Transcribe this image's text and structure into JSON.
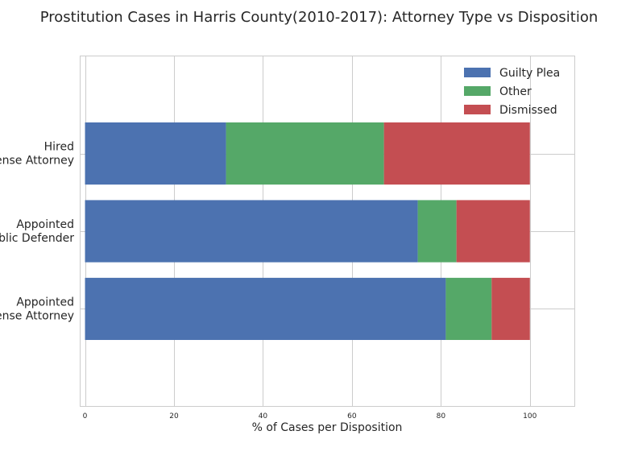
{
  "chart_data": {
    "type": "bar",
    "orientation": "horizontal",
    "stacked": true,
    "title": "Prostitution Cases in Harris County(2010-2017): Attorney Type vs Disposition",
    "xlabel": "% of Cases per Disposition",
    "ylabel": "",
    "xlim": [
      -1,
      110
    ],
    "xticks": [
      "0",
      "20",
      "40",
      "60",
      "80",
      "100"
    ],
    "grid": true,
    "legend_position": "top-right",
    "categories": [
      [
        "Appointed",
        "Defense Attorney"
      ],
      [
        "Appointed",
        "Public Defender"
      ],
      [
        "Hired",
        "Defense Attorney"
      ]
    ],
    "series": [
      {
        "name": "Guilty Plea",
        "color": "#4c72b0",
        "values": [
          81.1,
          74.8,
          31.7
        ]
      },
      {
        "name": "Other",
        "color": "#55a868",
        "values": [
          10.3,
          8.7,
          35.5
        ]
      },
      {
        "name": "Dismissed",
        "color": "#c44e52",
        "values": [
          8.6,
          16.5,
          32.8
        ]
      }
    ]
  }
}
